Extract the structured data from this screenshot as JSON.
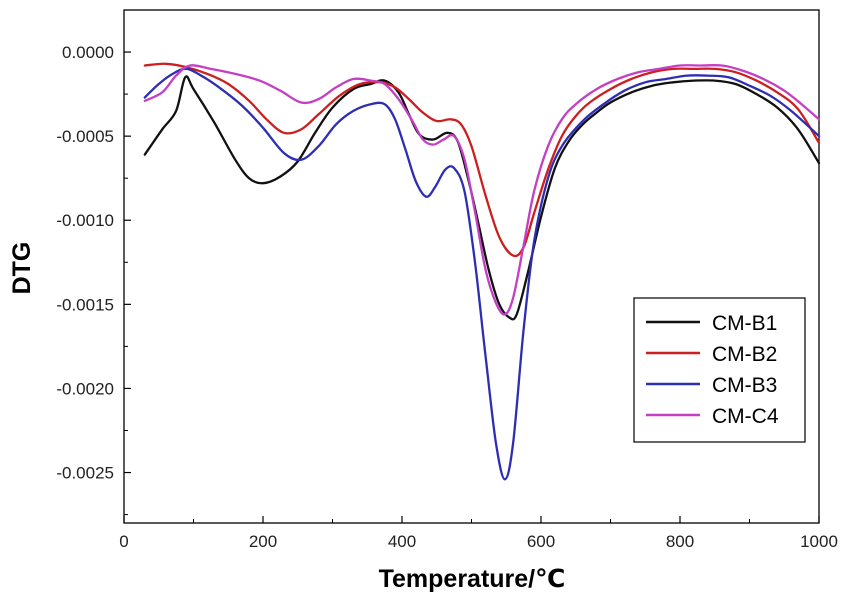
{
  "chart_data": {
    "type": "line",
    "xlabel": "Temperature/℃",
    "ylabel": "DTG",
    "xlim": [
      0,
      1000
    ],
    "ylim": [
      -0.0028,
      0.00025
    ],
    "x_ticks": [
      0,
      200,
      400,
      600,
      800,
      1000
    ],
    "y_ticks": [
      0.0,
      -0.0005,
      -0.001,
      -0.0015,
      -0.002,
      -0.0025
    ],
    "x_tick_labels": [
      "0",
      "200",
      "400",
      "600",
      "800",
      "1000"
    ],
    "y_tick_labels": [
      "0.0000",
      "-0.0005",
      "-0.0010",
      "-0.0015",
      "-0.0020",
      "-0.0025"
    ],
    "grid": false,
    "legend_position": "bottom-right",
    "series": [
      {
        "name": "CM-B1",
        "color": "#111111",
        "points": [
          [
            30,
            -0.00061
          ],
          [
            55,
            -0.00046
          ],
          [
            75,
            -0.00035
          ],
          [
            88,
            -0.00015
          ],
          [
            100,
            -0.00022
          ],
          [
            130,
            -0.00042
          ],
          [
            160,
            -0.00064
          ],
          [
            180,
            -0.00075
          ],
          [
            200,
            -0.00078
          ],
          [
            225,
            -0.00074
          ],
          [
            250,
            -0.00065
          ],
          [
            275,
            -0.00048
          ],
          [
            300,
            -0.00033
          ],
          [
            330,
            -0.00022
          ],
          [
            355,
            -0.00019
          ],
          [
            375,
            -0.00017
          ],
          [
            395,
            -0.00024
          ],
          [
            410,
            -0.00037
          ],
          [
            425,
            -0.00049
          ],
          [
            445,
            -0.00052
          ],
          [
            465,
            -0.00048
          ],
          [
            480,
            -0.00053
          ],
          [
            495,
            -0.00075
          ],
          [
            510,
            -0.00102
          ],
          [
            525,
            -0.0013
          ],
          [
            540,
            -0.0015
          ],
          [
            555,
            -0.00158
          ],
          [
            565,
            -0.00156
          ],
          [
            580,
            -0.00133
          ],
          [
            600,
            -0.00098
          ],
          [
            620,
            -0.00069
          ],
          [
            640,
            -0.00053
          ],
          [
            660,
            -0.00043
          ],
          [
            680,
            -0.00036
          ],
          [
            700,
            -0.0003
          ],
          [
            730,
            -0.00024
          ],
          [
            760,
            -0.0002
          ],
          [
            790,
            -0.00018
          ],
          [
            820,
            -0.00017
          ],
          [
            850,
            -0.00017
          ],
          [
            880,
            -0.00019
          ],
          [
            910,
            -0.00025
          ],
          [
            940,
            -0.00033
          ],
          [
            970,
            -0.00046
          ],
          [
            1000,
            -0.00066
          ]
        ]
      },
      {
        "name": "CM-B2",
        "color": "#cc1f1f",
        "points": [
          [
            30,
            -8e-05
          ],
          [
            60,
            -7e-05
          ],
          [
            90,
            -9e-05
          ],
          [
            120,
            -0.00013
          ],
          [
            150,
            -0.00019
          ],
          [
            180,
            -0.00029
          ],
          [
            205,
            -0.0004
          ],
          [
            230,
            -0.00048
          ],
          [
            255,
            -0.00046
          ],
          [
            280,
            -0.00037
          ],
          [
            310,
            -0.00026
          ],
          [
            340,
            -0.00019
          ],
          [
            370,
            -0.00018
          ],
          [
            390,
            -0.00021
          ],
          [
            410,
            -0.00028
          ],
          [
            430,
            -0.00036
          ],
          [
            450,
            -0.00041
          ],
          [
            470,
            -0.0004
          ],
          [
            485,
            -0.00043
          ],
          [
            500,
            -0.00056
          ],
          [
            520,
            -0.00085
          ],
          [
            540,
            -0.0011
          ],
          [
            560,
            -0.00121
          ],
          [
            575,
            -0.00116
          ],
          [
            590,
            -0.00096
          ],
          [
            610,
            -0.0007
          ],
          [
            630,
            -0.0005
          ],
          [
            650,
            -0.00038
          ],
          [
            670,
            -0.0003
          ],
          [
            700,
            -0.00022
          ],
          [
            730,
            -0.00016
          ],
          [
            760,
            -0.00012
          ],
          [
            790,
            -0.0001
          ],
          [
            820,
            -0.0001
          ],
          [
            850,
            -0.0001
          ],
          [
            880,
            -0.00012
          ],
          [
            910,
            -0.00017
          ],
          [
            940,
            -0.00024
          ],
          [
            970,
            -0.00034
          ],
          [
            1000,
            -0.00054
          ]
        ]
      },
      {
        "name": "CM-B3",
        "color": "#2e2eb4",
        "points": [
          [
            30,
            -0.00027
          ],
          [
            50,
            -0.00019
          ],
          [
            70,
            -0.00013
          ],
          [
            90,
            -0.0001
          ],
          [
            115,
            -0.00015
          ],
          [
            140,
            -0.00022
          ],
          [
            170,
            -0.00032
          ],
          [
            200,
            -0.00045
          ],
          [
            230,
            -0.0006
          ],
          [
            255,
            -0.00064
          ],
          [
            280,
            -0.00056
          ],
          [
            305,
            -0.00043
          ],
          [
            330,
            -0.00035
          ],
          [
            355,
            -0.00031
          ],
          [
            375,
            -0.00031
          ],
          [
            390,
            -0.0004
          ],
          [
            405,
            -0.00058
          ],
          [
            420,
            -0.00077
          ],
          [
            435,
            -0.00086
          ],
          [
            448,
            -0.0008
          ],
          [
            462,
            -0.0007
          ],
          [
            475,
            -0.00069
          ],
          [
            490,
            -0.00083
          ],
          [
            505,
            -0.00125
          ],
          [
            520,
            -0.0018
          ],
          [
            535,
            -0.00232
          ],
          [
            548,
            -0.00254
          ],
          [
            560,
            -0.00232
          ],
          [
            575,
            -0.00165
          ],
          [
            590,
            -0.00113
          ],
          [
            610,
            -0.00075
          ],
          [
            630,
            -0.00056
          ],
          [
            660,
            -0.00041
          ],
          [
            690,
            -0.00031
          ],
          [
            720,
            -0.00023
          ],
          [
            750,
            -0.00018
          ],
          [
            780,
            -0.00016
          ],
          [
            810,
            -0.00014
          ],
          [
            840,
            -0.00014
          ],
          [
            870,
            -0.00015
          ],
          [
            900,
            -0.0002
          ],
          [
            930,
            -0.00026
          ],
          [
            960,
            -0.00035
          ],
          [
            1000,
            -0.0005
          ]
        ]
      },
      {
        "name": "CM-C4",
        "color": "#c43fc4",
        "points": [
          [
            30,
            -0.00029
          ],
          [
            55,
            -0.00024
          ],
          [
            75,
            -0.00014
          ],
          [
            95,
            -8e-05
          ],
          [
            125,
            -0.0001
          ],
          [
            160,
            -0.00013
          ],
          [
            195,
            -0.00017
          ],
          [
            225,
            -0.00023
          ],
          [
            255,
            -0.0003
          ],
          [
            280,
            -0.00028
          ],
          [
            305,
            -0.00021
          ],
          [
            330,
            -0.00016
          ],
          [
            355,
            -0.00017
          ],
          [
            375,
            -0.00019
          ],
          [
            395,
            -0.00028
          ],
          [
            415,
            -0.00041
          ],
          [
            430,
            -0.00052
          ],
          [
            445,
            -0.00055
          ],
          [
            460,
            -0.00052
          ],
          [
            475,
            -0.0005
          ],
          [
            490,
            -0.00064
          ],
          [
            505,
            -0.00095
          ],
          [
            520,
            -0.00129
          ],
          [
            535,
            -0.00149
          ],
          [
            548,
            -0.00156
          ],
          [
            560,
            -0.00146
          ],
          [
            575,
            -0.00115
          ],
          [
            590,
            -0.00083
          ],
          [
            610,
            -0.00056
          ],
          [
            630,
            -0.0004
          ],
          [
            650,
            -0.00031
          ],
          [
            680,
            -0.00022
          ],
          [
            710,
            -0.00016
          ],
          [
            740,
            -0.00012
          ],
          [
            770,
            -0.0001
          ],
          [
            800,
            -8e-05
          ],
          [
            830,
            -8e-05
          ],
          [
            860,
            -8e-05
          ],
          [
            890,
            -0.00011
          ],
          [
            920,
            -0.00016
          ],
          [
            950,
            -0.00023
          ],
          [
            975,
            -0.00031
          ],
          [
            1000,
            -0.0004
          ]
        ]
      }
    ]
  }
}
